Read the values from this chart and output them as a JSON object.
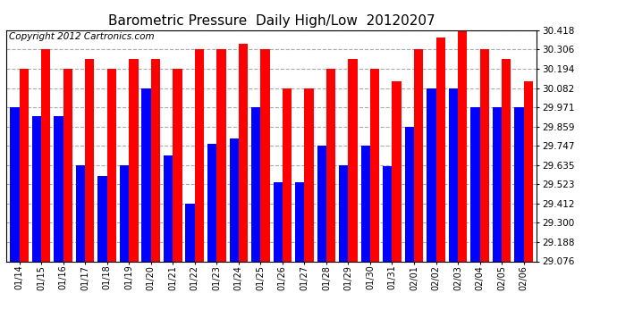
{
  "title": "Barometric Pressure  Daily High/Low  20120207",
  "copyright": "Copyright 2012 Cartronics.com",
  "dates": [
    "01/14",
    "01/15",
    "01/16",
    "01/17",
    "01/18",
    "01/19",
    "01/20",
    "01/21",
    "01/22",
    "01/23",
    "01/24",
    "01/25",
    "01/26",
    "01/27",
    "01/28",
    "01/29",
    "01/30",
    "01/31",
    "02/01",
    "02/02",
    "02/03",
    "02/04",
    "02/05",
    "02/06"
  ],
  "highs": [
    30.194,
    30.306,
    30.194,
    30.25,
    30.194,
    30.25,
    30.25,
    30.194,
    30.306,
    30.306,
    30.34,
    30.306,
    30.082,
    30.082,
    30.194,
    30.25,
    30.194,
    30.12,
    30.306,
    30.374,
    30.418,
    30.306,
    30.25,
    30.12
  ],
  "lows": [
    29.971,
    29.92,
    29.92,
    29.635,
    29.57,
    29.635,
    30.082,
    29.69,
    29.412,
    29.76,
    29.79,
    29.971,
    29.535,
    29.535,
    29.75,
    29.635,
    29.75,
    29.63,
    29.859,
    30.082,
    30.082,
    29.971,
    29.971,
    29.971
  ],
  "ylim_min": 29.076,
  "ylim_max": 30.418,
  "yticks": [
    29.076,
    29.188,
    29.3,
    29.412,
    29.523,
    29.635,
    29.747,
    29.859,
    29.971,
    30.082,
    30.194,
    30.306,
    30.418
  ],
  "high_color": "#FF0000",
  "low_color": "#0000FF",
  "bg_color": "#FFFFFF",
  "grid_color": "#AAAAAA",
  "title_fontsize": 11,
  "copyright_fontsize": 7.5
}
